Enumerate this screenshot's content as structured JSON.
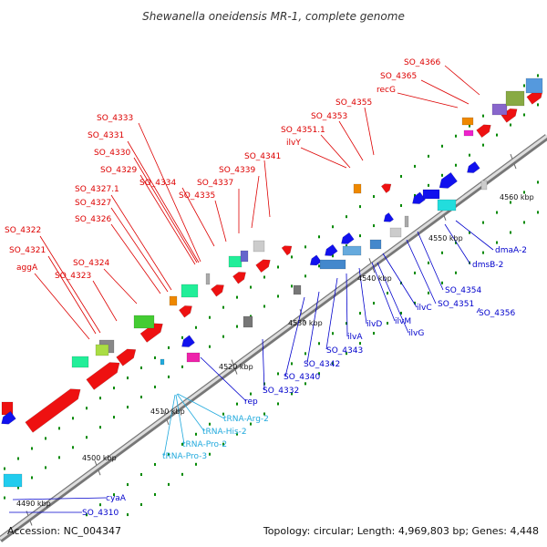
{
  "title": "Shewanella oneidensis MR-1, complete genome",
  "footer": {
    "accession": "Accession: NC_004347",
    "summary": "Topology: circular; Length: 4,969,803 bp; Genes: 4,448"
  },
  "colors": {
    "red_label": "#dd0000",
    "blue_label": "#0000cc",
    "cyan_label": "#22aadd",
    "backbone": "#999999",
    "tick": "#007700"
  },
  "kbp_marks": [
    "4490 kbp",
    "4500 kbp",
    "4510 kbp",
    "4520 kbp",
    "4530 kbp",
    "4540 kbp",
    "4550 kbp",
    "4560 kbp"
  ],
  "labels": {
    "SO_4366": "SO_4366",
    "SO_4365": "SO_4365",
    "recG": "recG",
    "SO_4355": "SO_4355",
    "SO_4353": "SO_4353",
    "SO_4351_1": "SO_4351.1",
    "ilvY": "ilvY",
    "SO_4341": "SO_4341",
    "SO_4339": "SO_4339",
    "SO_4337": "SO_4337",
    "SO_4335": "SO_4335",
    "SO_4334": "SO_4334",
    "SO_4333": "SO_4333",
    "SO_4331": "SO_4331",
    "SO_4330": "SO_4330",
    "SO_4329": "SO_4329",
    "SO_4327_1": "SO_4327.1",
    "SO_4327": "SO_4327",
    "SO_4326": "SO_4326",
    "SO_4324": "SO_4324",
    "SO_4323": "SO_4323",
    "SO_4322": "SO_4322",
    "SO_4321": "SO_4321",
    "aggA": "aggA",
    "dmaA_2": "dmaA-2",
    "dmsB_2": "dmsB-2",
    "SO_4354": "SO_4354",
    "SO_4351": "SO_4351",
    "SO_4356": "SO_4356",
    "ilvC": "ilvC",
    "ilvM": "ilvM",
    "ilvG": "ilvG",
    "ilvD": "ilvD",
    "ilvA": "ilvA",
    "SO_4343": "SO_4343",
    "SO_4342": "SO_4342",
    "SO_4340": "SO_4340",
    "SO_4332": "SO_4332",
    "rep": "rep",
    "tRNA_Arg_2": "tRNA-Arg-2",
    "tRNA_His_2": "tRNA-His-2",
    "tRNA_Pro_2": "tRNA-Pro-2",
    "tRNA_Pro_3": "tRNA-Pro-3",
    "cyaA": "cyaA",
    "SO_4310": "SO_4310"
  }
}
